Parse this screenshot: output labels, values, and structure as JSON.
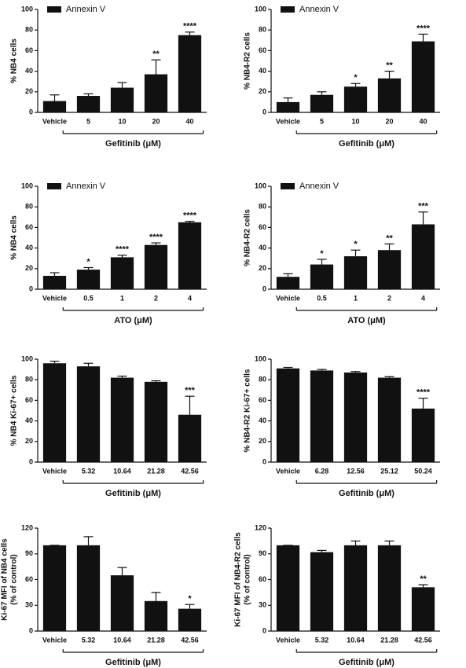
{
  "chart_data": [
    {
      "type": "bar",
      "legend": "Annexin V",
      "y_label": [
        "% NB4 cells"
      ],
      "group_label": "Gefitinib (μM)",
      "color": "#111111",
      "categories": [
        "Vehicle",
        "5",
        "10",
        "20",
        "40"
      ],
      "values": [
        11,
        16,
        24,
        37,
        75
      ],
      "errors": [
        6,
        2,
        5,
        14,
        3
      ],
      "significance": [
        null,
        null,
        null,
        "**",
        "****"
      ],
      "ylim": [
        0,
        100
      ],
      "yticks": [
        0,
        20,
        40,
        60,
        80,
        100
      ]
    },
    {
      "type": "bar",
      "legend": "Annexin V",
      "y_label": [
        "% NB4-R2 cells"
      ],
      "group_label": "Gefitinib (μM)",
      "color": "#111111",
      "categories": [
        "Vehicle",
        "5",
        "10",
        "20",
        "40"
      ],
      "values": [
        10,
        17,
        25,
        33,
        69
      ],
      "errors": [
        4,
        3,
        3,
        7,
        7
      ],
      "significance": [
        null,
        null,
        "*",
        "**",
        "****"
      ],
      "ylim": [
        0,
        100
      ],
      "yticks": [
        0,
        20,
        40,
        60,
        80,
        100
      ]
    },
    {
      "type": "bar",
      "legend": "Annexin V",
      "y_label": [
        "% NB4 cells"
      ],
      "group_label": "ATO (μM)",
      "color": "#111111",
      "categories": [
        "Vehicle",
        "0.5",
        "1",
        "2",
        "4"
      ],
      "values": [
        13,
        19,
        31,
        43,
        65
      ],
      "errors": [
        3,
        2,
        2,
        2,
        1
      ],
      "significance": [
        null,
        "*",
        "****",
        "****",
        "****"
      ],
      "ylim": [
        0,
        100
      ],
      "yticks": [
        0,
        20,
        40,
        60,
        80,
        100
      ]
    },
    {
      "type": "bar",
      "legend": "Annexin V",
      "y_label": [
        "% NB4-R2 cells"
      ],
      "group_label": "ATO (μM)",
      "color": "#111111",
      "categories": [
        "Vehicle",
        "0.5",
        "1",
        "2",
        "4"
      ],
      "values": [
        12,
        24,
        32,
        38,
        63
      ],
      "errors": [
        3,
        5,
        6,
        6,
        12
      ],
      "significance": [
        null,
        "*",
        "*",
        "**",
        "***"
      ],
      "ylim": [
        0,
        100
      ],
      "yticks": [
        0,
        20,
        40,
        60,
        80,
        100
      ]
    },
    {
      "type": "bar",
      "y_label": [
        "% NB4 Ki-67+ cells"
      ],
      "group_label": "Gefitinib (μM)",
      "color": "#111111",
      "categories": [
        "Vehicle",
        "5.32",
        "10.64",
        "21.28",
        "42.56"
      ],
      "values": [
        96,
        93,
        82,
        78,
        46
      ],
      "errors": [
        2,
        3,
        1.5,
        1,
        18
      ],
      "significance": [
        null,
        null,
        null,
        null,
        "***"
      ],
      "ylim": [
        0,
        100
      ],
      "yticks": [
        0,
        20,
        40,
        60,
        80,
        100
      ]
    },
    {
      "type": "bar",
      "y_label": [
        "% NB4-R2 Ki-67+ cells"
      ],
      "group_label": "Gefitinib (μM)",
      "color": "#111111",
      "categories": [
        "Vehicle",
        "6.28",
        "12.56",
        "25.12",
        "50.24"
      ],
      "values": [
        91,
        89,
        87,
        82,
        52
      ],
      "errors": [
        1,
        1,
        1,
        1,
        10
      ],
      "significance": [
        null,
        null,
        null,
        null,
        "****"
      ],
      "ylim": [
        0,
        100
      ],
      "yticks": [
        0,
        20,
        40,
        60,
        80,
        100
      ]
    },
    {
      "type": "bar",
      "y_label": [
        "Ki-67 MFI of NB4 cells",
        "(% of control)"
      ],
      "group_label": "Gefitinib (μM)",
      "color": "#111111",
      "categories": [
        "Vehicle",
        "5.32",
        "10.64",
        "21.28",
        "42.56"
      ],
      "values": [
        100,
        100,
        65,
        35,
        26
      ],
      "errors": [
        0,
        10,
        9,
        10,
        5
      ],
      "significance": [
        null,
        null,
        null,
        null,
        "*"
      ],
      "ylim": [
        0,
        120
      ],
      "yticks": [
        0,
        30,
        60,
        90,
        120
      ]
    },
    {
      "type": "bar",
      "y_label": [
        "Ki-67 MFI of NB4-R2 cells",
        "(% of control)"
      ],
      "group_label": "Gefitinib (μM)",
      "color": "#111111",
      "categories": [
        "Vehicle",
        "5.32",
        "10.64",
        "21.28",
        "42.56"
      ],
      "values": [
        100,
        92,
        100,
        100,
        51
      ],
      "errors": [
        0,
        2,
        5,
        5,
        3
      ],
      "significance": [
        null,
        null,
        null,
        null,
        "**"
      ],
      "ylim": [
        0,
        120
      ],
      "yticks": [
        0,
        30,
        60,
        90,
        120
      ]
    }
  ]
}
